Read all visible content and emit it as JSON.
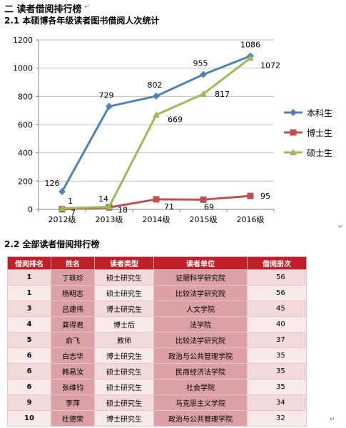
{
  "section_title": "二 读者借阅排行榜",
  "subsection1_title": "2.1 本硕博各年级读者图书借阅人次统计",
  "subsection2_title": "2.2 全部读者借阅排行榜",
  "chart_data": {
    "type": "line",
    "categories": [
      "2012级",
      "2013级",
      "2014级",
      "2015级",
      "2016级"
    ],
    "ylim": [
      0,
      1200
    ],
    "yticks": [
      0,
      200,
      400,
      600,
      800,
      1000,
      1200
    ],
    "grid": true,
    "legend_position": "right",
    "series": [
      {
        "name": "本科生",
        "color": "#4f81bd",
        "marker": "diamond",
        "values": [
          126,
          729,
          802,
          955,
          1086
        ]
      },
      {
        "name": "博士生",
        "color": "#c0504d",
        "marker": "square",
        "values": [
          1,
          14,
          71,
          69,
          95
        ]
      },
      {
        "name": "硕士生",
        "color": "#9bbb59",
        "marker": "triangle",
        "values": [
          7,
          18,
          669,
          817,
          1072
        ]
      }
    ]
  },
  "table": {
    "headers": [
      "借阅排名",
      "姓名",
      "读者类型",
      "读者单位",
      "借阅册次"
    ],
    "rows": [
      [
        "1",
        "丁轶珍",
        "硕士研究生",
        "证据科学研究院",
        "56"
      ],
      [
        "1",
        "杨明志",
        "硕士研究生",
        "比较法学研究院",
        "56"
      ],
      [
        "3",
        "吕建伟",
        "博士研究生",
        "人文学院",
        "45"
      ],
      [
        "4",
        "龚得君",
        "博士后",
        "法学院",
        "40"
      ],
      [
        "5",
        "俞飞",
        "教师",
        "比较法学研究院",
        "37"
      ],
      [
        "6",
        "白志华",
        "博士研究生",
        "政治与公共管理学院",
        "35"
      ],
      [
        "6",
        "韩易汝",
        "硕士研究生",
        "民商经济法学院",
        "35"
      ],
      [
        "6",
        "张维钧",
        "硕士研究生",
        "社会学院",
        "35"
      ],
      [
        "9",
        "李萍",
        "硕士研究生",
        "马克思主义学院",
        "34"
      ],
      [
        "10",
        "杜德荣",
        "博士研究生",
        "政治与公共管理学院",
        "32"
      ]
    ]
  }
}
